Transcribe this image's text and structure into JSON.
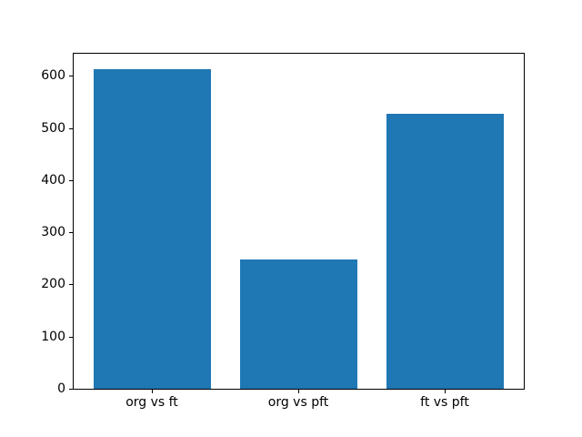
{
  "chart_data": {
    "type": "bar",
    "title": "",
    "xlabel": "",
    "ylabel": "",
    "categories": [
      "org vs ft",
      "org vs pft",
      "ft vs pft"
    ],
    "values": [
      613,
      248,
      527
    ],
    "yticks": [
      0,
      100,
      200,
      300,
      400,
      500,
      600
    ],
    "ylim": [
      0,
      644
    ],
    "bar_color": "#1f77b4",
    "background_color": "#ffffff",
    "spine_color": "#000000",
    "grid": "off",
    "legend": "none"
  }
}
